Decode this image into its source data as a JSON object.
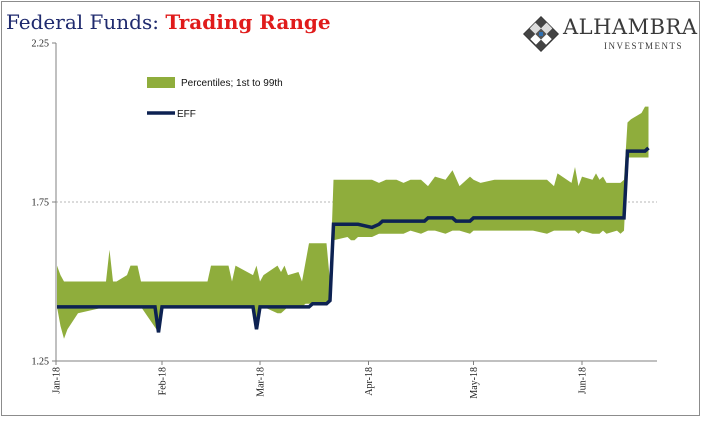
{
  "header": {
    "title_part1": "Federal Funds:",
    "title_part2": "Trading Range"
  },
  "logo": {
    "name": "ALHAMBRA",
    "subtitle": "INVESTMENTS",
    "icon": "diamond-lattice-logo"
  },
  "colors": {
    "band": "#8fad3c",
    "line": "#0d2252",
    "title_dark": "#1f2a6e",
    "title_red": "#e01b1b"
  },
  "chart_data": {
    "type": "area",
    "title": "Federal Funds: Trading Range",
    "ylim": [
      1.25,
      2.25
    ],
    "y_ticks": [
      "1.25",
      "1.75",
      "2.25"
    ],
    "x_ticks": [
      "Jan-18",
      "Feb-18",
      "Mar-18",
      "Apr-18",
      "May-18",
      "Jun-18"
    ],
    "gridline": 1.75,
    "legend": {
      "position": "top-left",
      "entries": [
        "Percentiles; 1st to 99th",
        "EFF"
      ]
    },
    "series": [
      {
        "name": "Percentiles; 1st to 99th",
        "type": "band",
        "points": [
          [
            "2018-01-02",
            1.42,
            1.55
          ],
          [
            "2018-01-03",
            1.36,
            1.52
          ],
          [
            "2018-01-04",
            1.32,
            1.5
          ],
          [
            "2018-01-05",
            1.35,
            1.5
          ],
          [
            "2018-01-08",
            1.4,
            1.5
          ],
          [
            "2018-01-16",
            1.42,
            1.5
          ],
          [
            "2018-01-17",
            1.42,
            1.6
          ],
          [
            "2018-01-18",
            1.42,
            1.5
          ],
          [
            "2018-01-19",
            1.42,
            1.5
          ],
          [
            "2018-01-22",
            1.42,
            1.52
          ],
          [
            "2018-01-23",
            1.42,
            1.55
          ],
          [
            "2018-01-25",
            1.42,
            1.55
          ],
          [
            "2018-01-26",
            1.42,
            1.5
          ],
          [
            "2018-01-31",
            1.34,
            1.5
          ],
          [
            "2018-02-01",
            1.42,
            1.5
          ],
          [
            "2018-02-02",
            1.42,
            1.5
          ],
          [
            "2018-02-14",
            1.42,
            1.5
          ],
          [
            "2018-02-15",
            1.42,
            1.55
          ],
          [
            "2018-02-20",
            1.42,
            1.55
          ],
          [
            "2018-02-21",
            1.42,
            1.5
          ],
          [
            "2018-02-22",
            1.42,
            1.55
          ],
          [
            "2018-02-27",
            1.42,
            1.52
          ],
          [
            "2018-02-28",
            1.36,
            1.55
          ],
          [
            "2018-03-01",
            1.42,
            1.5
          ],
          [
            "2018-03-02",
            1.42,
            1.52
          ],
          [
            "2018-03-06",
            1.4,
            1.55
          ],
          [
            "2018-03-07",
            1.4,
            1.53
          ],
          [
            "2018-03-08",
            1.41,
            1.55
          ],
          [
            "2018-03-09",
            1.42,
            1.52
          ],
          [
            "2018-03-12",
            1.42,
            1.53
          ],
          [
            "2018-03-13",
            1.42,
            1.5
          ],
          [
            "2018-03-14",
            1.43,
            1.56
          ],
          [
            "2018-03-15",
            1.43,
            1.62
          ],
          [
            "2018-03-20",
            1.43,
            1.62
          ],
          [
            "2018-03-21",
            1.44,
            1.5
          ],
          [
            "2018-03-22",
            1.63,
            1.82
          ],
          [
            "2018-03-26",
            1.64,
            1.82
          ],
          [
            "2018-03-27",
            1.63,
            1.82
          ],
          [
            "2018-03-28",
            1.63,
            1.82
          ],
          [
            "2018-03-29",
            1.64,
            1.82
          ],
          [
            "2018-04-02",
            1.64,
            1.82
          ],
          [
            "2018-04-04",
            1.65,
            1.81
          ],
          [
            "2018-04-06",
            1.65,
            1.82
          ],
          [
            "2018-04-09",
            1.65,
            1.82
          ],
          [
            "2018-04-11",
            1.65,
            1.81
          ],
          [
            "2018-04-13",
            1.66,
            1.82
          ],
          [
            "2018-04-16",
            1.65,
            1.82
          ],
          [
            "2018-04-18",
            1.66,
            1.8
          ],
          [
            "2018-04-20",
            1.66,
            1.83
          ],
          [
            "2018-04-23",
            1.65,
            1.82
          ],
          [
            "2018-04-25",
            1.66,
            1.85
          ],
          [
            "2018-04-27",
            1.66,
            1.8
          ],
          [
            "2018-04-30",
            1.65,
            1.83
          ],
          [
            "2018-05-01",
            1.66,
            1.82
          ],
          [
            "2018-05-03",
            1.66,
            1.81
          ],
          [
            "2018-05-07",
            1.66,
            1.82
          ],
          [
            "2018-05-10",
            1.66,
            1.82
          ],
          [
            "2018-05-15",
            1.66,
            1.82
          ],
          [
            "2018-05-18",
            1.66,
            1.82
          ],
          [
            "2018-05-22",
            1.65,
            1.82
          ],
          [
            "2018-05-24",
            1.66,
            1.8
          ],
          [
            "2018-05-25",
            1.66,
            1.84
          ],
          [
            "2018-05-29",
            1.66,
            1.81
          ],
          [
            "2018-05-30",
            1.66,
            1.86
          ],
          [
            "2018-05-31",
            1.65,
            1.8
          ],
          [
            "2018-06-01",
            1.66,
            1.83
          ],
          [
            "2018-06-04",
            1.65,
            1.82
          ],
          [
            "2018-06-05",
            1.65,
            1.84
          ],
          [
            "2018-06-06",
            1.65,
            1.82
          ],
          [
            "2018-06-07",
            1.66,
            1.83
          ],
          [
            "2018-06-08",
            1.65,
            1.81
          ],
          [
            "2018-06-11",
            1.66,
            1.81
          ],
          [
            "2018-06-12",
            1.65,
            1.81
          ],
          [
            "2018-06-13",
            1.66,
            1.82
          ],
          [
            "2018-06-14",
            1.89,
            2.0
          ],
          [
            "2018-06-15",
            1.89,
            2.01
          ],
          [
            "2018-06-18",
            1.89,
            2.03
          ],
          [
            "2018-06-19",
            1.89,
            2.05
          ],
          [
            "2018-06-20",
            1.89,
            2.05
          ]
        ]
      },
      {
        "name": "EFF",
        "type": "line",
        "points": [
          [
            "2018-01-02",
            1.42
          ],
          [
            "2018-01-30",
            1.42
          ],
          [
            "2018-01-31",
            1.34
          ],
          [
            "2018-02-01",
            1.42
          ],
          [
            "2018-02-27",
            1.42
          ],
          [
            "2018-02-28",
            1.35
          ],
          [
            "2018-03-01",
            1.42
          ],
          [
            "2018-03-15",
            1.42
          ],
          [
            "2018-03-16",
            1.43
          ],
          [
            "2018-03-20",
            1.43
          ],
          [
            "2018-03-21",
            1.44
          ],
          [
            "2018-03-22",
            1.68
          ],
          [
            "2018-03-29",
            1.68
          ],
          [
            "2018-04-02",
            1.67
          ],
          [
            "2018-04-04",
            1.68
          ],
          [
            "2018-04-05",
            1.69
          ],
          [
            "2018-04-17",
            1.69
          ],
          [
            "2018-04-18",
            1.7
          ],
          [
            "2018-04-25",
            1.7
          ],
          [
            "2018-04-26",
            1.69
          ],
          [
            "2018-04-30",
            1.69
          ],
          [
            "2018-05-01",
            1.7
          ],
          [
            "2018-06-13",
            1.7
          ],
          [
            "2018-06-14",
            1.91
          ],
          [
            "2018-06-19",
            1.91
          ],
          [
            "2018-06-20",
            1.92
          ]
        ]
      }
    ]
  }
}
